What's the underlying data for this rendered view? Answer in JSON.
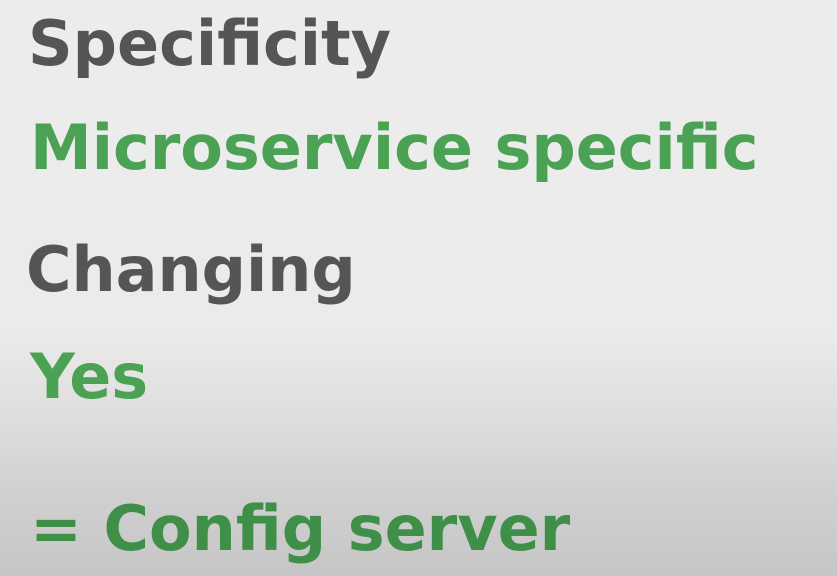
{
  "slide": {
    "specificity_heading": "Specificity",
    "specificity_value": "Microservice specific",
    "changing_heading": "Changing",
    "changing_value": "Yes",
    "conclusion": "= Config server"
  },
  "colors": {
    "heading": "#555555",
    "answer": "#4ca254",
    "conclusion": "#3f8f49",
    "background_top": "#ececec",
    "background_bottom": "#c6c6c6"
  }
}
